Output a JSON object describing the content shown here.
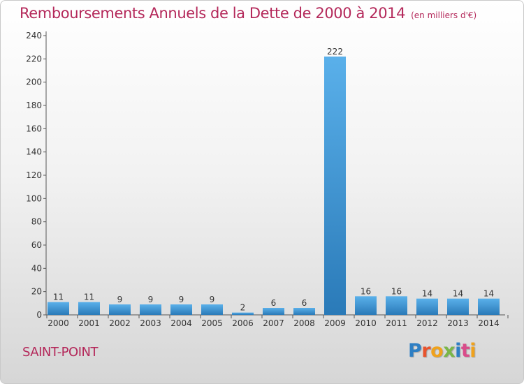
{
  "title": "Remboursements Annuels de la Dette de 2000 à 2014",
  "subtitle": "(en milliers d'€)",
  "commune": "SAINT-POINT",
  "logo_text": "Proxiti",
  "logo_colors": [
    "#2e7fc4",
    "#e8532d",
    "#f0a21c",
    "#7ab648",
    "#2e7fc4",
    "#d94c8a",
    "#f0a21c"
  ],
  "colors": {
    "title": "#b4285a",
    "bar_light": "#5ab0ea",
    "bar_dark": "#2a7ab8"
  },
  "chart_data": {
    "type": "bar",
    "categories": [
      "2000",
      "2001",
      "2002",
      "2003",
      "2004",
      "2005",
      "2006",
      "2007",
      "2008",
      "2009",
      "2010",
      "2011",
      "2012",
      "2013",
      "2014"
    ],
    "values": [
      11,
      11,
      9,
      9,
      9,
      9,
      2,
      6,
      6,
      222,
      16,
      16,
      14,
      14,
      14
    ],
    "title": "Remboursements Annuels de la Dette de 2000 à 2014",
    "xlabel": "",
    "ylabel": "",
    "ylim": [
      0,
      240
    ],
    "yticks": [
      0,
      20,
      40,
      60,
      80,
      100,
      120,
      140,
      160,
      180,
      200,
      220,
      240
    ],
    "grid": false,
    "legend": "none"
  }
}
